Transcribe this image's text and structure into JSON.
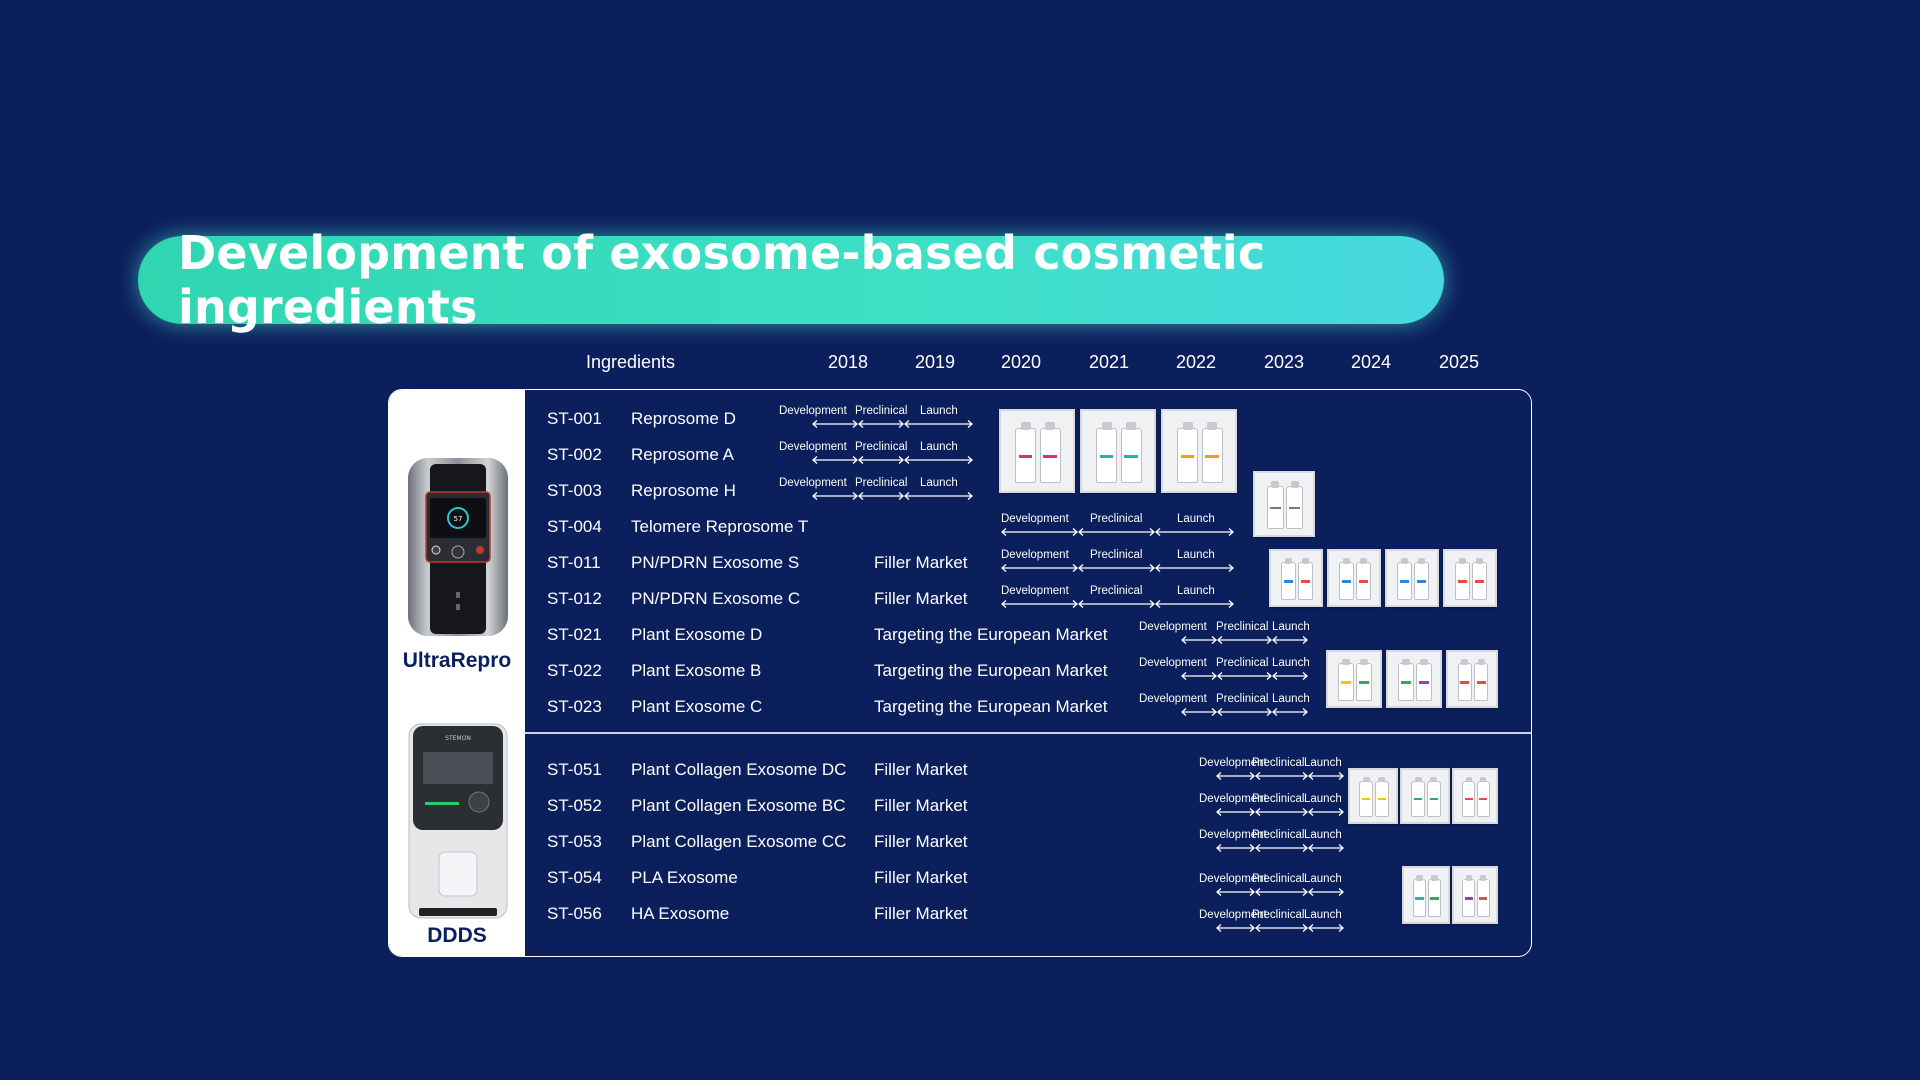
{
  "title": "Development of exosome-based cosmetic ingredients",
  "header": {
    "ingredients_label": "Ingredients",
    "years": [
      "2018",
      "2019",
      "2020",
      "2021",
      "2022",
      "2023",
      "2024",
      "2025"
    ]
  },
  "devices": {
    "top": "UltraRepro",
    "bottom": "DDDS"
  },
  "rows": [
    {
      "code": "ST-001",
      "name": "Reprosome D",
      "market": ""
    },
    {
      "code": "ST-002",
      "name": "Reprosome A",
      "market": ""
    },
    {
      "code": "ST-003",
      "name": "Reprosome H",
      "market": ""
    },
    {
      "code": "ST-004",
      "name": "Telomere Reprosome T",
      "market": ""
    },
    {
      "code": "ST-011",
      "name": "PN/PDRN Exosome S",
      "market": "Filler Market"
    },
    {
      "code": "ST-012",
      "name": "PN/PDRN Exosome C",
      "market": "Filler Market"
    },
    {
      "code": "ST-021",
      "name": "Plant Exosome D",
      "market": "Targeting the European Market"
    },
    {
      "code": "ST-022",
      "name": "Plant Exosome B",
      "market": "Targeting the European Market"
    },
    {
      "code": "ST-023",
      "name": "Plant Exosome C",
      "market": "Targeting the European Market"
    },
    {
      "code": "ST-051",
      "name": "Plant Collagen Exosome DC",
      "market": "Filler Market"
    },
    {
      "code": "ST-052",
      "name": "Plant Collagen Exosome BC",
      "market": "Filler Market"
    },
    {
      "code": "ST-053",
      "name": "Plant Collagen Exosome CC",
      "market": "Filler Market"
    },
    {
      "code": "ST-054",
      "name": "PLA Exosome",
      "market": "Filler Market"
    },
    {
      "code": "ST-056",
      "name": "HA Exosome",
      "market": "Filler Market"
    }
  ],
  "stages": {
    "development": "Development",
    "preclinical": "Preclinical",
    "launch": "Launch"
  },
  "colors": {
    "background": "#0b1f5c",
    "accent": "#2fd6b0",
    "label_navy": "#0b1f5c"
  },
  "icons": [
    "ultrarepro-device-image",
    "ddds-device-image",
    "product-package-image"
  ]
}
